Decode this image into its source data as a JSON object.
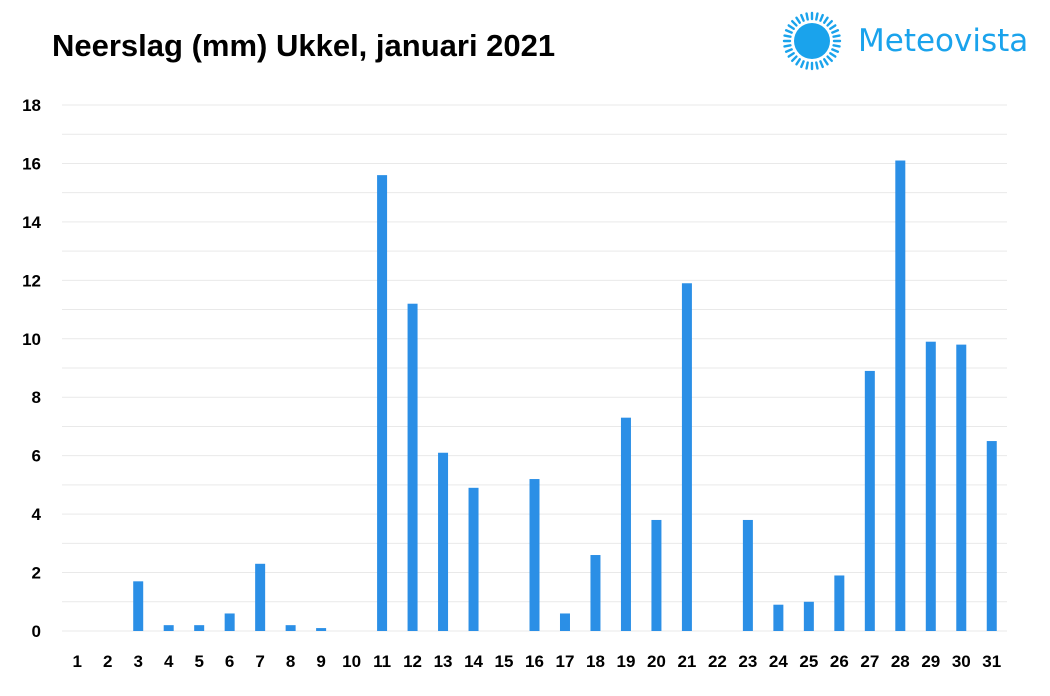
{
  "brand": {
    "name": "Meteovista",
    "logo_icon": "sun-icon",
    "color": "#1aa3ec"
  },
  "chart_data": {
    "type": "bar",
    "title": "Neerslag (mm) Ukkel, januari 2021",
    "xlabel": "",
    "ylabel": "",
    "categories": [
      "1",
      "2",
      "3",
      "4",
      "5",
      "6",
      "7",
      "8",
      "9",
      "10",
      "11",
      "12",
      "13",
      "14",
      "15",
      "16",
      "17",
      "18",
      "19",
      "20",
      "21",
      "22",
      "23",
      "24",
      "25",
      "26",
      "27",
      "28",
      "29",
      "30",
      "31"
    ],
    "values": [
      0,
      0,
      1.7,
      0.2,
      0.2,
      0.6,
      2.3,
      0.2,
      0.1,
      0,
      15.6,
      11.2,
      6.1,
      4.9,
      0,
      5.2,
      0.6,
      2.6,
      7.3,
      3.8,
      11.9,
      0,
      3.8,
      0.9,
      1.0,
      1.9,
      8.9,
      16.1,
      9.9,
      9.8,
      6.5
    ],
    "ylim": [
      0,
      18
    ],
    "yticks": [
      0,
      2,
      4,
      6,
      8,
      10,
      12,
      14,
      16,
      18
    ],
    "grid": true,
    "legend": "none",
    "bar_color": "#2b8fe6",
    "grid_color": "#e9e9e9"
  }
}
